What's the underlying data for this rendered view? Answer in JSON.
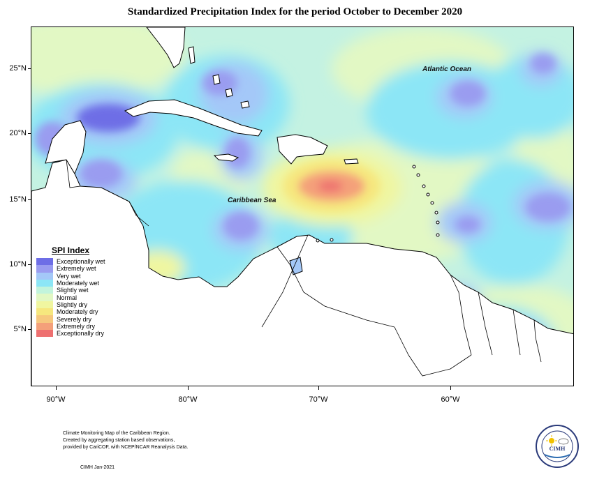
{
  "title": "Standardized Precipitation Index for the period October to December 2020",
  "map": {
    "labels": {
      "atlantic": "Atlantic Ocean",
      "caribbean": "Caribbean Sea"
    },
    "lat_ticks": [
      "25°N",
      "20°N",
      "15°N",
      "10°N",
      "5°N"
    ],
    "lon_ticks": [
      "90°W",
      "80°W",
      "70°W",
      "60°W"
    ]
  },
  "legend": {
    "title": "SPI Index",
    "items": [
      {
        "label": "Exceptionally wet",
        "color": "#6e6ee6"
      },
      {
        "label": "Extremely wet",
        "color": "#9a9cf0"
      },
      {
        "label": "Very wet",
        "color": "#a4c8f8"
      },
      {
        "label": "Moderately wet",
        "color": "#8ce6f6"
      },
      {
        "label": "Slightly wet",
        "color": "#c2f4dc"
      },
      {
        "label": "Normal",
        "color": "#e2f8c4"
      },
      {
        "label": "Slightly dry",
        "color": "#f0f6a0"
      },
      {
        "label": "Moderately dry",
        "color": "#f6e77e"
      },
      {
        "label": "Severely dry",
        "color": "#f6c87e"
      },
      {
        "label": "Extremely dry",
        "color": "#f4a07a"
      },
      {
        "label": "Exceptionally dry",
        "color": "#ee7070"
      }
    ]
  },
  "footnote": [
    "Climate Monitoring Map of the Caribbean Region.",
    "Created by aggregating station based observations,",
    "provided by CariCOF, with NCEP/NCAR Reanalysis Data."
  ],
  "credit": "CIMH Jan-2021",
  "logo": {
    "text": "CIMH",
    "icons": [
      "sun-icon",
      "cloud-icon"
    ]
  }
}
